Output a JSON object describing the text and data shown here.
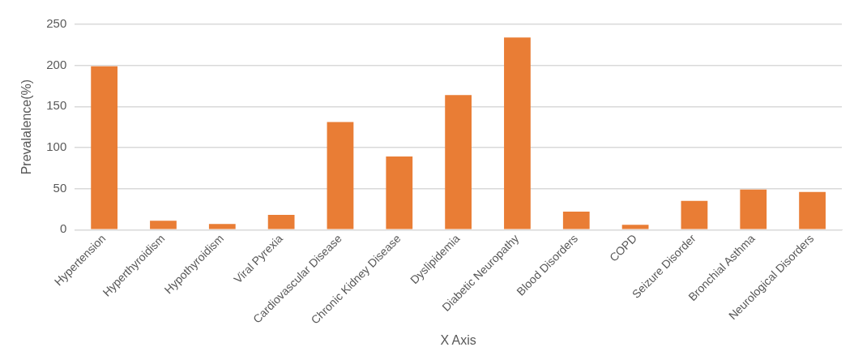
{
  "chart_data": {
    "type": "bar",
    "xlabel": "X Axis",
    "ylabel": "Prevalalence(%)",
    "categories": [
      "Hypertension",
      "Hyperthyroidism",
      "Hypothyroidism",
      "Viral Pyrexia",
      "Cardiovascular Disease",
      "Chronic Kidney Disease",
      "Dyslipidemia",
      "Diabetic Neuropathy",
      "Blood Disorders",
      "COPD",
      "Seizure Disorder",
      "Bronchial Asthma",
      "Neurological Disorders"
    ],
    "values": [
      199,
      11,
      7,
      18,
      131,
      89,
      164,
      234,
      22,
      6,
      35,
      49,
      46
    ],
    "color": "#e97d35",
    "ylim": [
      0,
      250
    ],
    "yticks": [
      0,
      50,
      100,
      150,
      200,
      250
    ],
    "grid": "y",
    "legend": false
  }
}
